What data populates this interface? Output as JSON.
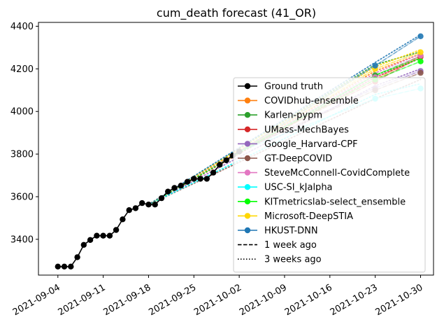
{
  "chart_data": {
    "type": "line",
    "title": "cum_death forecast (41_OR)",
    "xlabel": "",
    "ylabel": "",
    "x_axis": {
      "type": "date",
      "range": [
        "2021-09-01",
        "2021-11-01"
      ],
      "ticks": [
        "2021-09-04",
        "2021-09-11",
        "2021-09-18",
        "2021-09-25",
        "2021-10-02",
        "2021-10-09",
        "2021-10-16",
        "2021-10-23",
        "2021-10-30"
      ]
    },
    "y_axis": {
      "range": [
        3232,
        4418
      ],
      "ticks": [
        3400,
        3600,
        3800,
        4000,
        4200,
        4400
      ]
    },
    "grid": false,
    "legend_position": "right",
    "ground_truth": {
      "name": "Ground truth",
      "color": "#000000",
      "points": [
        [
          "2021-09-04",
          3272
        ],
        [
          "2021-09-05",
          3272
        ],
        [
          "2021-09-06",
          3272
        ],
        [
          "2021-09-07",
          3316
        ],
        [
          "2021-09-08",
          3374
        ],
        [
          "2021-09-09",
          3397
        ],
        [
          "2021-09-10",
          3417
        ],
        [
          "2021-09-11",
          3417
        ],
        [
          "2021-09-12",
          3417
        ],
        [
          "2021-09-13",
          3444
        ],
        [
          "2021-09-14",
          3494
        ],
        [
          "2021-09-15",
          3537
        ],
        [
          "2021-09-16",
          3546
        ],
        [
          "2021-09-17",
          3570
        ],
        [
          "2021-09-18",
          3563
        ],
        [
          "2021-09-19",
          3563
        ],
        [
          "2021-09-20",
          3593
        ],
        [
          "2021-09-21",
          3624
        ],
        [
          "2021-09-22",
          3641
        ],
        [
          "2021-09-23",
          3652
        ],
        [
          "2021-09-24",
          3670
        ],
        [
          "2021-09-25",
          3684
        ],
        [
          "2021-09-26",
          3684
        ],
        [
          "2021-09-27",
          3684
        ],
        [
          "2021-09-28",
          3713
        ],
        [
          "2021-09-29",
          3750
        ],
        [
          "2021-09-30",
          3771
        ],
        [
          "2021-10-01",
          3793
        ],
        [
          "2021-10-02",
          3812
        ]
      ]
    },
    "series": [
      {
        "name": "COVIDhub-ensemble",
        "color": "#ff7f0e",
        "one_week": [
          [
            "2021-10-02",
            3812
          ],
          [
            "2021-10-23",
            4150
          ],
          [
            "2021-10-30",
            4262
          ]
        ],
        "three_weeks": [
          [
            "2021-09-18",
            3563
          ],
          [
            "2021-10-23",
            4190
          ],
          [
            "2021-10-30",
            4270
          ]
        ]
      },
      {
        "name": "Karlen-pypm",
        "color": "#2ca02c",
        "one_week": [
          [
            "2021-10-02",
            3812
          ],
          [
            "2021-10-23",
            4170
          ],
          [
            "2021-10-30",
            4260
          ]
        ],
        "three_weeks": [
          [
            "2021-09-18",
            3563
          ],
          [
            "2021-10-23",
            4220
          ],
          [
            "2021-10-30",
            4280
          ]
        ]
      },
      {
        "name": "UMass-MechBayes",
        "color": "#d62728",
        "one_week": [
          [
            "2021-10-02",
            3812
          ],
          [
            "2021-10-23",
            4140
          ],
          [
            "2021-10-30",
            4256
          ]
        ],
        "three_weeks": [
          [
            "2021-09-18",
            3563
          ],
          [
            "2021-10-23",
            4160
          ],
          [
            "2021-10-30",
            4250
          ]
        ]
      },
      {
        "name": "Google_Harvard-CPF",
        "color": "#9467bd",
        "one_week": [
          [
            "2021-10-02",
            3812
          ],
          [
            "2021-10-23",
            4110
          ],
          [
            "2021-10-30",
            4190
          ]
        ],
        "three_weeks": [
          [
            "2021-09-18",
            3563
          ],
          [
            "2021-10-23",
            4120
          ],
          [
            "2021-10-30",
            4200
          ]
        ]
      },
      {
        "name": "GT-DeepCOVID",
        "color": "#8c564b",
        "one_week": [
          [
            "2021-10-02",
            3812
          ],
          [
            "2021-10-23",
            4100
          ],
          [
            "2021-10-30",
            4181
          ]
        ],
        "three_weeks": [
          [
            "2021-09-18",
            3563
          ],
          [
            "2021-10-23",
            4060
          ],
          [
            "2021-10-30",
            4150
          ]
        ]
      },
      {
        "name": "SteveMcConnell-CovidComplete",
        "color": "#e377c2",
        "one_week": [
          [
            "2021-10-02",
            3812
          ],
          [
            "2021-10-23",
            4160
          ],
          [
            "2021-10-30",
            4262
          ]
        ],
        "three_weeks": [
          [
            "2021-09-18",
            3563
          ],
          [
            "2021-10-23",
            4180
          ],
          [
            "2021-10-30",
            4270
          ]
        ]
      },
      {
        "name": "USC-SI_kJalpha",
        "color": "#00ffff",
        "one_week": [
          [
            "2021-10-02",
            3812
          ],
          [
            "2021-10-23",
            4060
          ],
          [
            "2021-10-30",
            4108
          ]
        ],
        "three_weeks": [
          [
            "2021-09-18",
            3563
          ],
          [
            "2021-10-23",
            4080
          ],
          [
            "2021-10-30",
            4130
          ]
        ]
      },
      {
        "name": "KITmetricslab-select_ensemble",
        "color": "#00ff00",
        "one_week": [
          [
            "2021-10-02",
            3812
          ],
          [
            "2021-10-23",
            4150
          ],
          [
            "2021-10-30",
            4235
          ]
        ],
        "three_weeks": [
          [
            "2021-09-18",
            3563
          ],
          [
            "2021-10-23",
            4170
          ],
          [
            "2021-10-30",
            4250
          ]
        ]
      },
      {
        "name": "Microsoft-DeepSTIA",
        "color": "#ffd700",
        "one_week": [
          [
            "2021-10-02",
            3812
          ],
          [
            "2021-10-23",
            4200
          ],
          [
            "2021-10-30",
            4278
          ]
        ],
        "three_weeks": [
          [
            "2021-09-18",
            3563
          ],
          [
            "2021-10-23",
            4210
          ],
          [
            "2021-10-30",
            4290
          ]
        ]
      },
      {
        "name": "HKUST-DNN",
        "color": "#1f77b4",
        "one_week": [
          [
            "2021-10-02",
            3812
          ],
          [
            "2021-10-23",
            4215
          ],
          [
            "2021-10-30",
            4353
          ]
        ],
        "three_weeks": [
          [
            "2021-09-18",
            3563
          ],
          [
            "2021-10-23",
            4230
          ],
          [
            "2021-10-30",
            4360
          ]
        ]
      }
    ],
    "legend_style_entries": [
      {
        "label": "1 week ago",
        "dash": "dashed"
      },
      {
        "label": "3 weeks ago",
        "dash": "dotted"
      }
    ]
  }
}
